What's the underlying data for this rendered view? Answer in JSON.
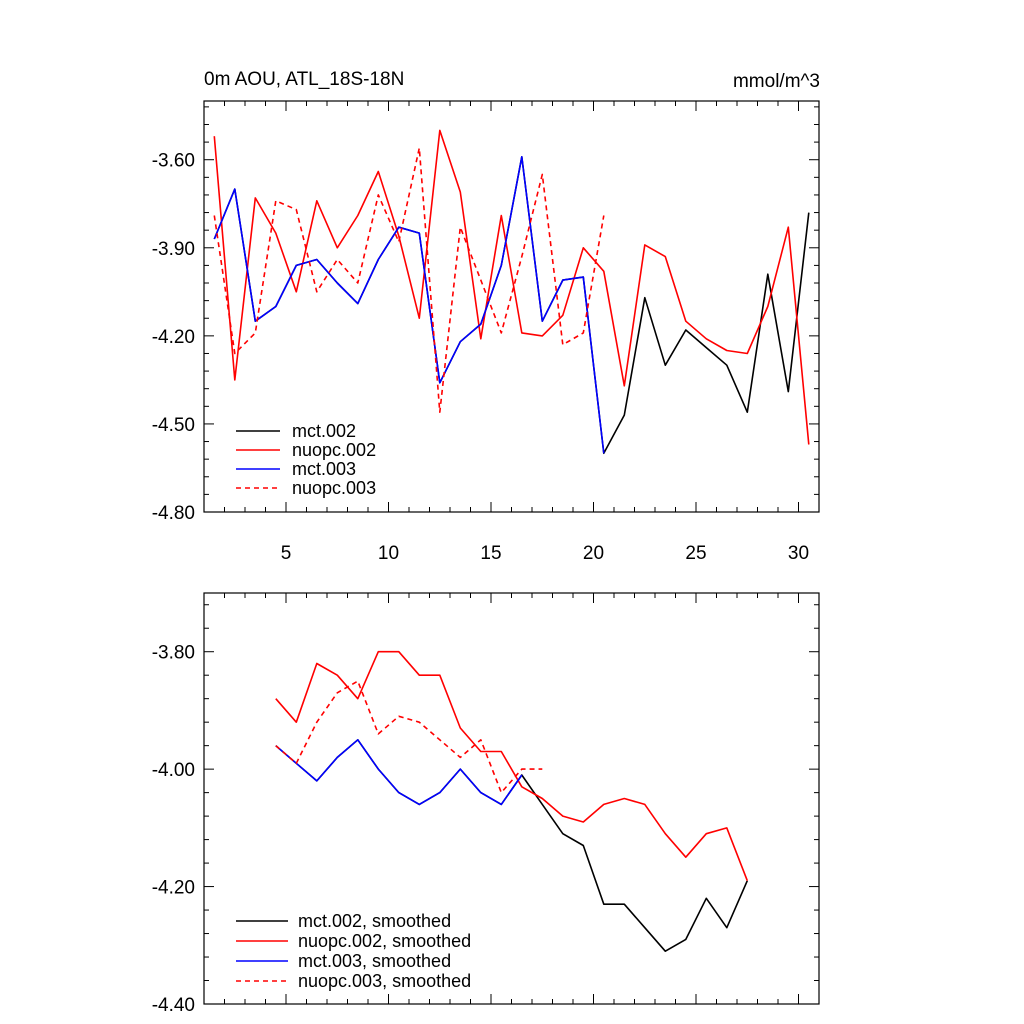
{
  "chart_data": [
    {
      "type": "line",
      "title": "0m AOU, ATL_18S-18N",
      "units": "mmol/m^3",
      "xlabel": "",
      "ylabel": "",
      "xlim": [
        1,
        31
      ],
      "ylim": [
        -4.8,
        -3.4
      ],
      "yticks": [
        -4.8,
        -4.5,
        -4.2,
        -3.9,
        -3.6
      ],
      "ytick_labels": [
        "-4.80",
        "-4.50",
        "-4.20",
        "-3.90",
        "-3.60"
      ],
      "xticks": [
        5,
        10,
        15,
        20,
        25,
        30
      ],
      "xtick_labels": [
        "5",
        "10",
        "15",
        "20",
        "25",
        "30"
      ],
      "series": [
        {
          "name": "mct.002",
          "color": "#000000",
          "dash": "solid",
          "x": [
            1.5,
            2.5,
            3.5,
            4.5,
            5.5,
            6.5,
            7.5,
            8.5,
            9.5,
            10.5,
            11.5,
            12.5,
            13.5,
            14.5,
            15.5,
            16.5,
            17.5,
            18.5,
            19.5,
            20.5,
            21.5,
            22.5,
            23.5,
            24.5,
            25.5,
            26.5,
            27.5,
            28.5,
            29.5,
            30.5
          ],
          "values": [
            -3.87,
            -3.7,
            -4.15,
            -4.1,
            -3.96,
            -3.94,
            -4.02,
            -4.09,
            -3.94,
            -3.83,
            -3.85,
            -4.36,
            -4.22,
            -4.16,
            -3.96,
            -3.59,
            -4.15,
            -4.01,
            -4.0,
            -4.6,
            -4.47,
            -4.07,
            -4.3,
            -4.18,
            -4.24,
            -4.3,
            -4.46,
            -3.99,
            -4.39,
            -3.78
          ]
        },
        {
          "name": "nuopc.002",
          "color": "#ff0000",
          "dash": "solid",
          "x": [
            1.5,
            2.5,
            3.5,
            4.5,
            5.5,
            6.5,
            7.5,
            8.5,
            9.5,
            10.5,
            11.5,
            12.5,
            13.5,
            14.5,
            15.5,
            16.5,
            17.5,
            18.5,
            19.5,
            20.5,
            21.5,
            22.5,
            23.5,
            24.5,
            25.5,
            26.5,
            27.5,
            28.5,
            29.5,
            30.5
          ],
          "values": [
            -3.52,
            -4.35,
            -3.73,
            -3.85,
            -4.05,
            -3.74,
            -3.9,
            -3.79,
            -3.64,
            -3.86,
            -4.14,
            -3.5,
            -3.71,
            -4.21,
            -3.79,
            -4.19,
            -4.2,
            -4.13,
            -3.9,
            -3.98,
            -4.37,
            -3.89,
            -3.93,
            -4.15,
            -4.21,
            -4.25,
            -4.26,
            -4.1,
            -3.83,
            -4.57
          ]
        },
        {
          "name": "mct.003",
          "color": "#0000ff",
          "dash": "solid",
          "x": [
            1.5,
            2.5,
            3.5,
            4.5,
            5.5,
            6.5,
            7.5,
            8.5,
            9.5,
            10.5,
            11.5,
            12.5,
            13.5,
            14.5,
            15.5,
            16.5,
            17.5,
            18.5,
            19.5,
            20.5
          ],
          "values": [
            -3.87,
            -3.7,
            -4.15,
            -4.1,
            -3.96,
            -3.94,
            -4.02,
            -4.09,
            -3.94,
            -3.83,
            -3.85,
            -4.36,
            -4.22,
            -4.16,
            -3.96,
            -3.59,
            -4.15,
            -4.01,
            -4.0,
            -4.6
          ]
        },
        {
          "name": "nuopc.003",
          "color": "#ff0000",
          "dash": "dashed",
          "x": [
            1.5,
            2.5,
            3.5,
            4.5,
            5.5,
            6.5,
            7.5,
            8.5,
            9.5,
            10.5,
            11.5,
            12.5,
            13.5,
            14.5,
            15.5,
            16.5,
            17.5,
            18.5,
            19.5,
            20.5
          ],
          "values": [
            -3.79,
            -4.26,
            -4.19,
            -3.74,
            -3.77,
            -4.05,
            -3.94,
            -4.02,
            -3.72,
            -3.88,
            -3.56,
            -4.46,
            -3.83,
            -4.01,
            -4.19,
            -3.93,
            -3.65,
            -4.23,
            -4.19,
            -3.79
          ]
        }
      ],
      "legend": {
        "position": "bottom-left",
        "entries": [
          "mct.002",
          "nuopc.002",
          "mct.003",
          "nuopc.003"
        ]
      }
    },
    {
      "type": "line",
      "title": "",
      "xlabel": "",
      "ylabel": "",
      "xlim": [
        1,
        31
      ],
      "ylim": [
        -4.4,
        -3.7
      ],
      "yticks": [
        -4.4,
        -4.2,
        -4.0,
        -3.8
      ],
      "ytick_labels": [
        "-4.40",
        "-4.20",
        "-4.00",
        "-3.80"
      ],
      "xticks": [
        5,
        10,
        15,
        20,
        25,
        30
      ],
      "series": [
        {
          "name": "mct.002, smoothed",
          "color": "#000000",
          "dash": "solid",
          "x": [
            4.5,
            5.5,
            6.5,
            7.5,
            8.5,
            9.5,
            10.5,
            11.5,
            12.5,
            13.5,
            14.5,
            15.5,
            16.5,
            17.5,
            18.5,
            19.5,
            20.5,
            21.5,
            22.5,
            23.5,
            24.5,
            25.5,
            26.5,
            27.5
          ],
          "values": [
            -3.96,
            -3.99,
            -4.02,
            -3.98,
            -3.95,
            -4.0,
            -4.04,
            -4.06,
            -4.04,
            -4.0,
            -4.04,
            -4.06,
            -4.01,
            -4.06,
            -4.11,
            -4.13,
            -4.23,
            -4.23,
            -4.27,
            -4.31,
            -4.29,
            -4.22,
            -4.27,
            -4.19
          ]
        },
        {
          "name": "nuopc.002, smoothed",
          "color": "#ff0000",
          "dash": "solid",
          "x": [
            4.5,
            5.5,
            6.5,
            7.5,
            8.5,
            9.5,
            10.5,
            11.5,
            12.5,
            13.5,
            14.5,
            15.5,
            16.5,
            17.5,
            18.5,
            19.5,
            20.5,
            21.5,
            22.5,
            23.5,
            24.5,
            25.5,
            26.5,
            27.5
          ],
          "values": [
            -3.88,
            -3.92,
            -3.82,
            -3.84,
            -3.88,
            -3.8,
            -3.8,
            -3.84,
            -3.84,
            -3.93,
            -3.97,
            -3.97,
            -4.03,
            -4.05,
            -4.08,
            -4.09,
            -4.06,
            -4.05,
            -4.06,
            -4.11,
            -4.15,
            -4.11,
            -4.1,
            -4.19
          ]
        },
        {
          "name": "mct.003, smoothed",
          "color": "#0000ff",
          "dash": "solid",
          "x": [
            4.5,
            5.5,
            6.5,
            7.5,
            8.5,
            9.5,
            10.5,
            11.5,
            12.5,
            13.5,
            14.5,
            15.5,
            16.5
          ],
          "values": [
            -3.96,
            -3.99,
            -4.02,
            -3.98,
            -3.95,
            -4.0,
            -4.04,
            -4.06,
            -4.04,
            -4.0,
            -4.04,
            -4.06,
            -4.01
          ]
        },
        {
          "name": "nuopc.003, smoothed",
          "color": "#ff0000",
          "dash": "dashed",
          "x": [
            4.5,
            5.5,
            6.5,
            7.5,
            8.5,
            9.5,
            10.5,
            11.5,
            12.5,
            13.5,
            14.5,
            15.5,
            16.5,
            17.5
          ],
          "values": [
            -3.96,
            -3.99,
            -3.92,
            -3.87,
            -3.85,
            -3.94,
            -3.91,
            -3.92,
            -3.95,
            -3.98,
            -3.95,
            -4.04,
            -4.0,
            -4.0
          ]
        }
      ],
      "legend": {
        "position": "bottom-left",
        "entries": [
          "mct.002, smoothed",
          "nuopc.002, smoothed",
          "mct.003, smoothed",
          "nuopc.003, smoothed"
        ]
      }
    }
  ]
}
